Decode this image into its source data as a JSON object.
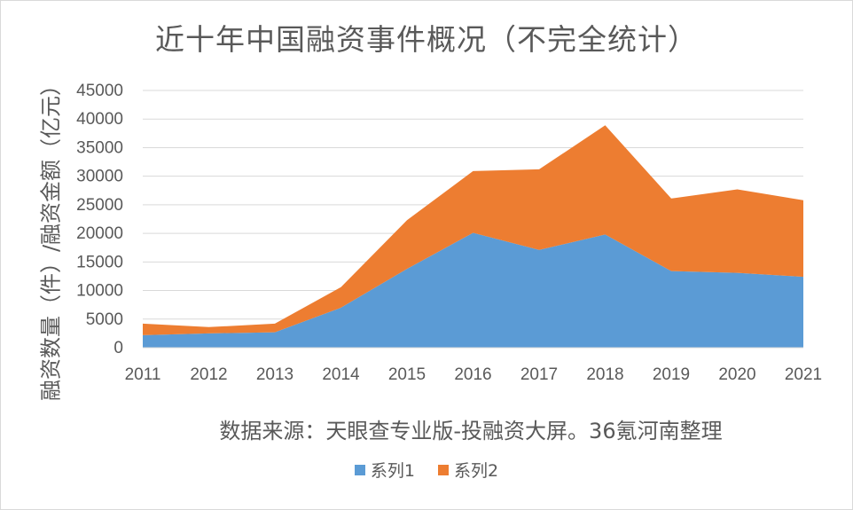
{
  "chart_data": {
    "type": "area",
    "stacked": true,
    "title": "近十年中国融资事件概况（不完全统计）",
    "xlabel": "数据来源：天眼查专业版-投融资大屏。36氪河南整理",
    "ylabel": "融资数量（件）/融资金额（亿元）",
    "categories": [
      "2011",
      "2012",
      "2013",
      "2014",
      "2015",
      "2016",
      "2017",
      "2018",
      "2019",
      "2020",
      "2021"
    ],
    "series": [
      {
        "name": "系列1",
        "color": "#5b9bd5",
        "values": [
          2200,
          2500,
          2700,
          7000,
          13800,
          20100,
          17100,
          19800,
          13400,
          13100,
          12400
        ]
      },
      {
        "name": "系列2",
        "color": "#ed7d31",
        "values": [
          2000,
          1100,
          1500,
          3600,
          8500,
          10800,
          14100,
          19100,
          12700,
          14600,
          13400
        ]
      }
    ],
    "ylim": [
      0,
      45000
    ],
    "yticks": [
      "0",
      "5000",
      "10000",
      "15000",
      "20000",
      "25000",
      "30000",
      "35000",
      "40000",
      "45000"
    ],
    "grid": true,
    "legend": "bottom"
  }
}
